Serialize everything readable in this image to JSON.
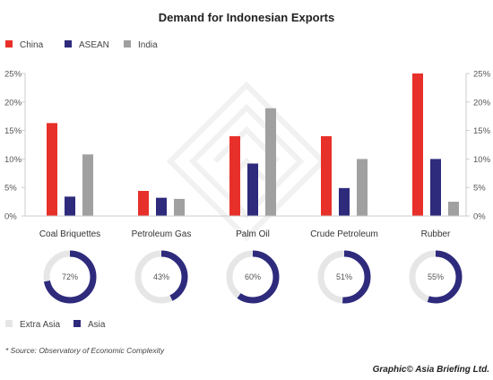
{
  "chart_data": {
    "type": "bar",
    "title": "Demand for Indonesian Exports",
    "categories": [
      "Coal Briquettes",
      "Petroleum Gas",
      "Palm Oil",
      "Crude Petroleum",
      "Rubber"
    ],
    "series": [
      {
        "name": "China",
        "color": "#e8302a",
        "values": [
          16.3,
          4.4,
          14.0,
          14.0,
          25.0
        ]
      },
      {
        "name": "ASEAN",
        "color": "#2e2a7c",
        "values": [
          3.4,
          3.2,
          9.2,
          4.9,
          10.0
        ]
      },
      {
        "name": "India",
        "color": "#a0a0a0",
        "values": [
          10.8,
          3.0,
          18.9,
          10.0,
          2.5
        ]
      }
    ],
    "ylim": [
      0,
      25
    ],
    "y_ticks": [
      "0%",
      "5%",
      "10%",
      "15%",
      "20%",
      "25%"
    ],
    "y_tick_values": [
      0,
      5,
      10,
      15,
      20,
      25
    ],
    "axes": "both-sides",
    "grid": false,
    "legend_position": "top-left",
    "donuts": {
      "type": "pie",
      "values": [
        72,
        43,
        60,
        51,
        55
      ],
      "labels": [
        "72%",
        "43%",
        "60%",
        "51%",
        "55%"
      ],
      "legend": [
        {
          "name": "Extra Asia",
          "color": "#e6e6e6"
        },
        {
          "name": "Asia",
          "color": "#2e2a7c"
        }
      ]
    },
    "source": "* Source: Observatory of Economic Complexity",
    "credit": "Graphic© Asia Briefing Ltd."
  }
}
